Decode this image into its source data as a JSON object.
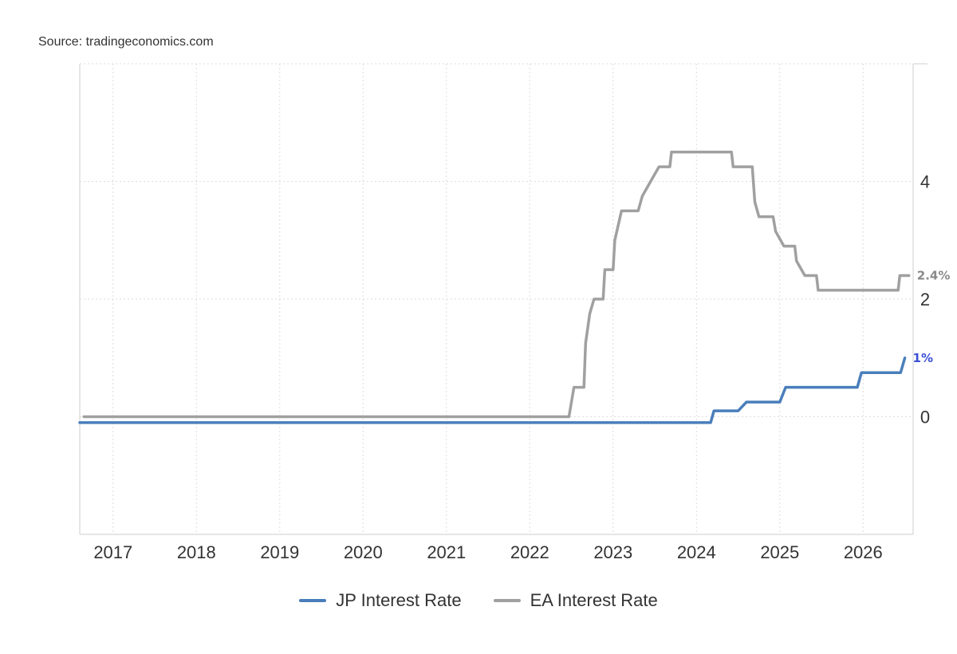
{
  "source": "Source: tradingeconomics.com",
  "colors": {
    "jp": "#4a7ebb",
    "ea": "#a0a0a0",
    "jp_label": "#3b4fd6",
    "ea_label": "#8a8a8a"
  },
  "chart_data": {
    "type": "line",
    "title": "",
    "xlabel": "",
    "ylabel": "",
    "xlim": [
      2016.6,
      2026.6
    ],
    "ylim": [
      -2,
      6
    ],
    "grid": true,
    "legend_position": "bottom-center",
    "x_ticks": [
      "2017",
      "2018",
      "2019",
      "2020",
      "2021",
      "2022",
      "2023",
      "2024",
      "2025",
      "2026"
    ],
    "y_ticks": [
      "0",
      "2",
      "4"
    ],
    "series": [
      {
        "name": "JP Interest Rate",
        "end_label": "1%",
        "points": [
          [
            2016.6,
            -0.1
          ],
          [
            2024.17,
            -0.1
          ],
          [
            2024.21,
            0.1
          ],
          [
            2024.5,
            0.1
          ],
          [
            2024.6,
            0.25
          ],
          [
            2025.0,
            0.25
          ],
          [
            2025.07,
            0.5
          ],
          [
            2025.93,
            0.5
          ],
          [
            2025.98,
            0.75
          ],
          [
            2026.45,
            0.75
          ],
          [
            2026.5,
            1.0
          ]
        ]
      },
      {
        "name": "EA Interest Rate",
        "end_label": "2.4%",
        "points": [
          [
            2016.65,
            0.0
          ],
          [
            2022.47,
            0.0
          ],
          [
            2022.53,
            0.5
          ],
          [
            2022.65,
            0.5
          ],
          [
            2022.67,
            1.25
          ],
          [
            2022.72,
            1.75
          ],
          [
            2022.77,
            2.0
          ],
          [
            2022.88,
            2.0
          ],
          [
            2022.9,
            2.5
          ],
          [
            2023.0,
            2.5
          ],
          [
            2023.02,
            3.0
          ],
          [
            2023.1,
            3.5
          ],
          [
            2023.3,
            3.5
          ],
          [
            2023.35,
            3.75
          ],
          [
            2023.45,
            4.0
          ],
          [
            2023.55,
            4.25
          ],
          [
            2023.68,
            4.25
          ],
          [
            2023.7,
            4.5
          ],
          [
            2024.42,
            4.5
          ],
          [
            2024.44,
            4.25
          ],
          [
            2024.67,
            4.25
          ],
          [
            2024.7,
            3.65
          ],
          [
            2024.75,
            3.4
          ],
          [
            2024.92,
            3.4
          ],
          [
            2024.95,
            3.15
          ],
          [
            2025.05,
            2.9
          ],
          [
            2025.18,
            2.9
          ],
          [
            2025.2,
            2.65
          ],
          [
            2025.3,
            2.4
          ],
          [
            2025.44,
            2.4
          ],
          [
            2025.46,
            2.15
          ],
          [
            2026.42,
            2.15
          ],
          [
            2026.44,
            2.4
          ],
          [
            2026.55,
            2.4
          ]
        ]
      }
    ]
  }
}
